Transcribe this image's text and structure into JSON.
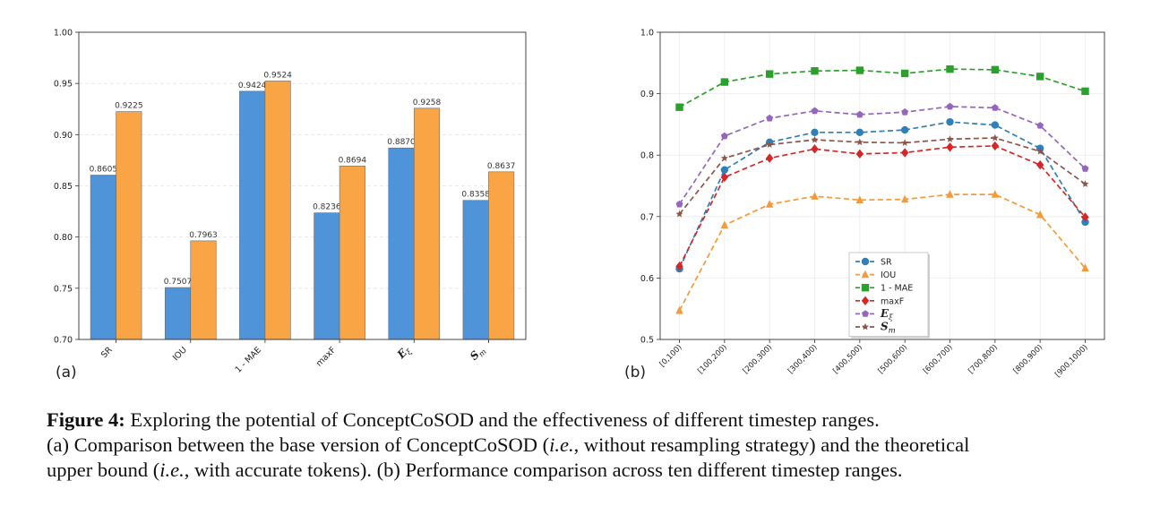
{
  "figure": {
    "panel_a_label": "(a)",
    "panel_b_label": "(b)"
  },
  "chart_data": [
    {
      "type": "bar",
      "categories": [
        "SR",
        "IOU",
        "1 - MAE",
        "maxF",
        "E_ξ",
        "S_m"
      ],
      "series": [
        {
          "values": [
            0.8605,
            0.7507,
            0.9424,
            0.8236,
            0.887,
            0.8358
          ],
          "color": "#4f93d8"
        },
        {
          "values": [
            0.9225,
            0.7963,
            0.9524,
            0.8694,
            0.9258,
            0.8637
          ],
          "color": "#f9a445"
        }
      ],
      "data_labels": [
        [
          "0.8605",
          "0.7507",
          "0.9424",
          "0.8236",
          "0.8870",
          "0.8358"
        ],
        [
          "0.9225",
          "0.7963",
          "0.9524",
          "0.8694",
          "0.9258",
          "0.8637"
        ]
      ],
      "ylim": [
        0.7,
        1.0
      ],
      "yticks": [
        "0.70",
        "0.75",
        "0.80",
        "0.85",
        "0.90",
        "0.95",
        "1.00"
      ],
      "grid": true,
      "xlabel": "",
      "ylabel": "",
      "title": ""
    },
    {
      "type": "line",
      "x": [
        "[0,100)",
        "[100,200)",
        "[200,300)",
        "[300,400)",
        "[400,500)",
        "[500,600)",
        "[600,700)",
        "[700,800)",
        "[800,900)",
        "[900,1000)"
      ],
      "series": [
        {
          "name": "SR",
          "marker": "circle",
          "color": "#2f7fb8",
          "values": [
            0.615,
            0.776,
            0.821,
            0.837,
            0.837,
            0.841,
            0.854,
            0.849,
            0.811,
            0.691
          ]
        },
        {
          "name": "IOU",
          "marker": "triangle",
          "color": "#f39a3a",
          "values": [
            0.547,
            0.686,
            0.72,
            0.733,
            0.727,
            0.728,
            0.736,
            0.736,
            0.703,
            0.616
          ]
        },
        {
          "name": "1 - MAE",
          "marker": "square",
          "color": "#2ca02c",
          "values": [
            0.878,
            0.919,
            0.932,
            0.937,
            0.938,
            0.933,
            0.94,
            0.939,
            0.928,
            0.904
          ]
        },
        {
          "name": "maxF",
          "marker": "diamond",
          "color": "#d62728",
          "values": [
            0.619,
            0.764,
            0.795,
            0.81,
            0.802,
            0.804,
            0.813,
            0.815,
            0.784,
            0.699
          ]
        },
        {
          "name": "E_ξ",
          "marker": "pentagon",
          "color": "#9467bd",
          "values": [
            0.72,
            0.831,
            0.86,
            0.872,
            0.866,
            0.87,
            0.879,
            0.877,
            0.848,
            0.778
          ]
        },
        {
          "name": "S_m",
          "marker": "star",
          "color": "#8c564b",
          "values": [
            0.704,
            0.795,
            0.817,
            0.825,
            0.821,
            0.82,
            0.826,
            0.828,
            0.806,
            0.753
          ]
        }
      ],
      "ylim": [
        0.5,
        1.0
      ],
      "yticks": [
        "0.5",
        "0.6",
        "0.7",
        "0.8",
        "0.9",
        "1.0"
      ],
      "grid": true,
      "legend": "lower center",
      "xlabel": "",
      "ylabel": "",
      "title": ""
    }
  ],
  "caption": {
    "label": "Figure 4:",
    "line1": " Exploring the potential of ConceptCoSOD and the effectiveness of different timestep ranges.",
    "line2_a": "(a) Comparison between the base version of ConceptCoSOD (",
    "line2_ie1": "i.e.",
    "line2_b": ", without resampling strategy) and the theoretical",
    "line3_a": "upper bound (",
    "line3_ie2": "i.e.",
    "line3_b": ", with accurate tokens). (b) Performance comparison across ten different timestep ranges."
  }
}
